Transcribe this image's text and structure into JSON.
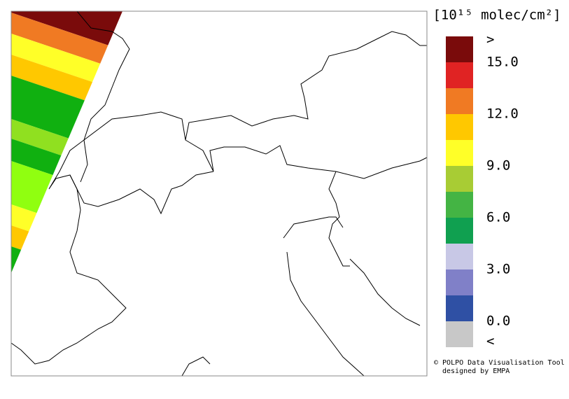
{
  "legend": {
    "title": "[10¹⁵ molec/cm²]",
    "labels": [
      ">",
      "15.0",
      "12.0",
      "9.0",
      "6.0",
      "3.0",
      "0.0",
      "<"
    ],
    "colors": [
      "#7a0b0b",
      "#e02323",
      "#f07a23",
      "#ffc800",
      "#ffff28",
      "#a8cc34",
      "#44b444",
      "#10a050",
      "#c8c8e6",
      "#8080c8",
      "#2f50a4",
      "#c8c8c8"
    ]
  },
  "credits": {
    "line1": "© POLPO Data Visualisation Tool",
    "line2": "designed by EMPA"
  }
}
